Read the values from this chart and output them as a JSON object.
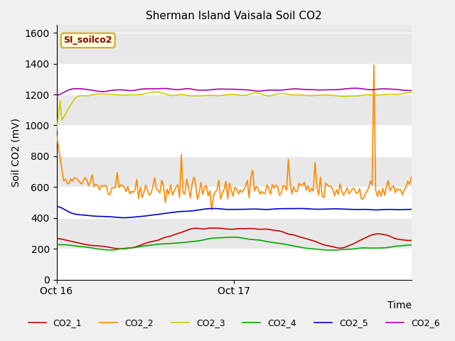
{
  "title": "Sherman Island Vaisala Soil CO2",
  "ylabel": "Soil CO2 (mV)",
  "xlabel": "Time",
  "xlim_label_start": "Oct 16",
  "xlim_label_mid": "Oct 17",
  "ylim": [
    0,
    1650
  ],
  "yticks": [
    0,
    200,
    400,
    600,
    800,
    1000,
    1200,
    1400,
    1600
  ],
  "legend_label": "SI_soilco2",
  "series_labels": [
    "CO2_1",
    "CO2_2",
    "CO2_3",
    "CO2_4",
    "CO2_5",
    "CO2_6"
  ],
  "colors": {
    "CO2_1": "#cc0000",
    "CO2_2": "#ff8800",
    "CO2_3": "#cccc00",
    "CO2_4": "#00aa00",
    "CO2_5": "#0000cc",
    "CO2_6": "#aa00aa"
  },
  "background_color": "#e8e8e8",
  "plot_bg_color": "#e8e8e8",
  "grid_color": "#ffffff"
}
